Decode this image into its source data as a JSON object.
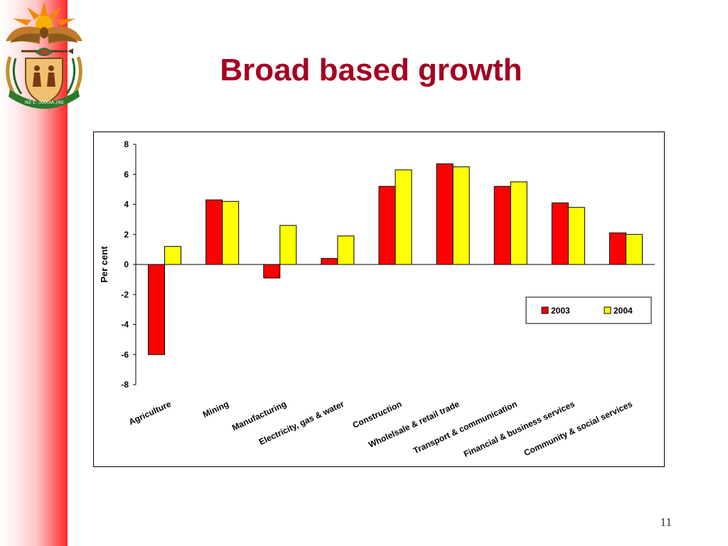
{
  "slide": {
    "title": "Broad based growth",
    "page_number": "11",
    "crest_motto": "!KE E: /XARRA //KE"
  },
  "colors": {
    "title": "#a50021",
    "series_2003": "#ff0000",
    "series_2004": "#ffff00",
    "side_bar": "#ff2a2a"
  },
  "chart_data": {
    "type": "bar",
    "title": "",
    "xlabel": "",
    "ylabel": "Per cent",
    "ylim": [
      -8,
      8
    ],
    "yticks": [
      8,
      6,
      4,
      2,
      0,
      -2,
      -4,
      -6,
      -8
    ],
    "grid": false,
    "legend_position": "right, below zero line",
    "categories": [
      "Agriculture",
      "Mining",
      "Manufacturing",
      "Electricity, gas & water",
      "Construction",
      "Wholelsale & retail trade",
      "Transport & communication",
      "Financial & business services",
      "Community & social services"
    ],
    "series": [
      {
        "name": "2003",
        "color": "#ff0000",
        "values": [
          -6.0,
          4.3,
          -0.9,
          0.4,
          5.2,
          6.7,
          5.2,
          4.1,
          2.1
        ]
      },
      {
        "name": "2004",
        "color": "#ffff00",
        "values": [
          1.2,
          4.2,
          2.6,
          1.9,
          6.3,
          6.5,
          5.5,
          3.8,
          2.0
        ]
      }
    ]
  }
}
